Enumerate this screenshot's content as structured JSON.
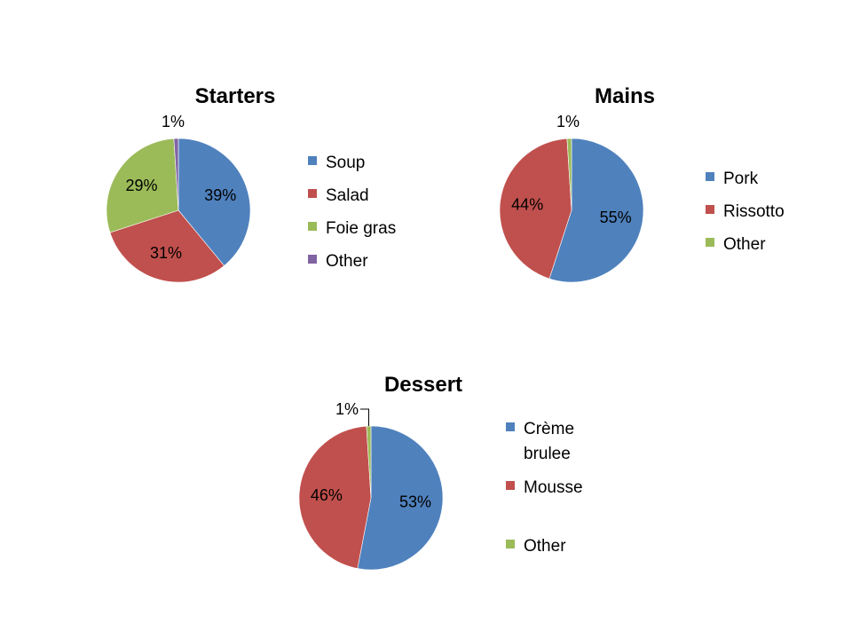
{
  "chart_data": [
    {
      "type": "pie",
      "title": "Starters",
      "legend_position": "right",
      "slices": [
        {
          "label": "Soup",
          "value": 39,
          "data_label": "39%",
          "color": "#4F81BD"
        },
        {
          "label": "Salad",
          "value": 31,
          "data_label": "31%",
          "color": "#C0504D"
        },
        {
          "label": "Foie gras",
          "value": 29,
          "data_label": "29%",
          "color": "#9BBB59"
        },
        {
          "label": "Other",
          "value": 1,
          "data_label": "1%",
          "color": "#8064A2"
        }
      ]
    },
    {
      "type": "pie",
      "title": "Mains",
      "legend_position": "right",
      "slices": [
        {
          "label": "Pork",
          "value": 55,
          "data_label": "55%",
          "color": "#4F81BD"
        },
        {
          "label": "Rissotto",
          "value": 44,
          "data_label": "44%",
          "color": "#C0504D"
        },
        {
          "label": "Other",
          "value": 1,
          "data_label": "1%",
          "color": "#9BBB59"
        }
      ]
    },
    {
      "type": "pie",
      "title": "Dessert",
      "legend_position": "right",
      "slices": [
        {
          "label": [
            "Crème",
            "brulee"
          ],
          "value": 53,
          "data_label": "53%",
          "color": "#4F81BD"
        },
        {
          "label": "Mousse",
          "value": 46,
          "data_label": "46%",
          "color": "#C0504D"
        },
        {
          "label": "Other",
          "value": 1,
          "data_label": "1%",
          "color": "#9BBB59"
        }
      ]
    }
  ]
}
